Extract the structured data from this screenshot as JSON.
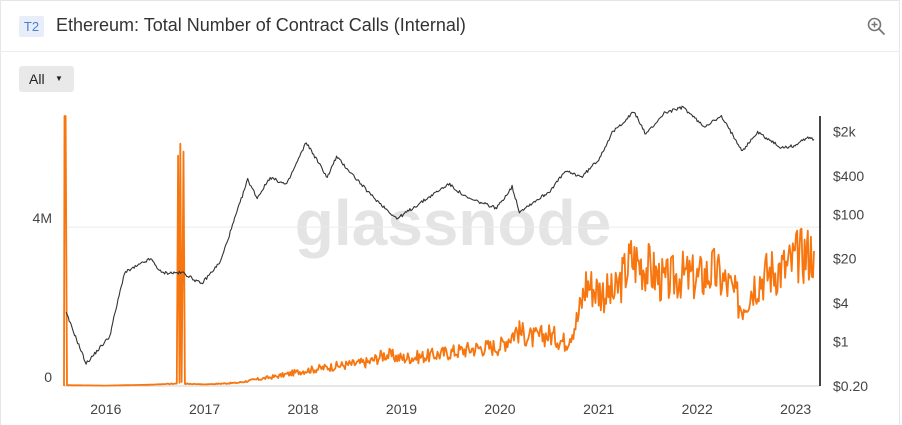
{
  "header": {
    "badge": "T2",
    "title": "Ethereum: Total Number of Contract Calls (Internal)",
    "zoom_icon": "zoom-in-icon"
  },
  "controls": {
    "range_label": "All"
  },
  "watermark": "glassnode",
  "colors": {
    "calls": "#f7760f",
    "price": "#333333",
    "axis": "#444444"
  },
  "chart_data": {
    "type": "line",
    "x_ticks": [
      "2016",
      "2017",
      "2018",
      "2019",
      "2020",
      "2021",
      "2022",
      "2023"
    ],
    "x_range": [
      "2015-07-30",
      "2023-03-10"
    ],
    "y_left_ticks": [
      "0",
      "4M"
    ],
    "y_left_range": [
      0,
      6800000
    ],
    "y_right_ticks": [
      "$0.20",
      "$1",
      "$4",
      "$20",
      "$100",
      "$400",
      "$2k"
    ],
    "y_right_scale": "log",
    "y_right_range": [
      0.2,
      3500
    ],
    "series": [
      {
        "axis": "left",
        "color": "#f7760f",
        "points": [
          [
            "2015-07-30",
            0
          ],
          [
            "2015-08-01",
            6800000
          ],
          [
            "2015-08-05",
            6800000
          ],
          [
            "2015-08-10",
            20000
          ],
          [
            "2016-01-01",
            10000
          ],
          [
            "2016-06-01",
            30000
          ],
          [
            "2016-09-20",
            60000
          ],
          [
            "2016-09-25",
            5800000
          ],
          [
            "2016-09-30",
            80000
          ],
          [
            "2016-10-03",
            6100000
          ],
          [
            "2016-10-08",
            100000
          ],
          [
            "2016-10-15",
            5900000
          ],
          [
            "2016-10-20",
            60000
          ],
          [
            "2017-01-01",
            40000
          ],
          [
            "2017-05-01",
            80000
          ],
          [
            "2017-07-01",
            150000
          ],
          [
            "2017-10-01",
            250000
          ],
          [
            "2018-01-01",
            380000
          ],
          [
            "2018-05-01",
            500000
          ],
          [
            "2018-09-01",
            600000
          ],
          [
            "2018-11-01",
            800000
          ],
          [
            "2019-01-01",
            700000
          ],
          [
            "2019-04-01",
            750000
          ],
          [
            "2019-07-01",
            850000
          ],
          [
            "2019-10-01",
            950000
          ],
          [
            "2020-01-01",
            1000000
          ],
          [
            "2020-03-01",
            1400000
          ],
          [
            "2020-05-01",
            1200000
          ],
          [
            "2020-07-01",
            1300000
          ],
          [
            "2020-09-01",
            1100000
          ],
          [
            "2020-10-15",
            1700000
          ],
          [
            "2020-11-15",
            2600000
          ],
          [
            "2021-01-01",
            2400000
          ],
          [
            "2021-03-01",
            2300000
          ],
          [
            "2021-05-01",
            3200000
          ],
          [
            "2021-07-01",
            3000000
          ],
          [
            "2021-09-01",
            2600000
          ],
          [
            "2021-11-01",
            2800000
          ],
          [
            "2022-01-01",
            2700000
          ],
          [
            "2022-03-01",
            2900000
          ],
          [
            "2022-05-01",
            2500000
          ],
          [
            "2022-06-15",
            2000000
          ],
          [
            "2022-08-01",
            2600000
          ],
          [
            "2022-10-01",
            2900000
          ],
          [
            "2022-12-01",
            3000000
          ],
          [
            "2023-01-15",
            3300000
          ],
          [
            "2023-03-10",
            3400000
          ]
        ]
      },
      {
        "axis": "right",
        "color": "#333333",
        "points": [
          [
            "2015-08-07",
            2.8
          ],
          [
            "2015-10-20",
            0.45
          ],
          [
            "2016-01-15",
            1.2
          ],
          [
            "2016-03-10",
            12
          ],
          [
            "2016-06-15",
            20
          ],
          [
            "2016-07-25",
            12
          ],
          [
            "2016-10-15",
            12
          ],
          [
            "2016-12-20",
            8
          ],
          [
            "2017-03-01",
            18
          ],
          [
            "2017-06-10",
            350
          ],
          [
            "2017-07-15",
            180
          ],
          [
            "2017-09-01",
            380
          ],
          [
            "2017-11-01",
            290
          ],
          [
            "2018-01-13",
            1350
          ],
          [
            "2018-04-01",
            380
          ],
          [
            "2018-05-05",
            800
          ],
          [
            "2018-09-10",
            200
          ],
          [
            "2018-12-15",
            85
          ],
          [
            "2019-06-25",
            300
          ],
          [
            "2019-09-01",
            180
          ],
          [
            "2019-12-20",
            125
          ],
          [
            "2020-02-15",
            270
          ],
          [
            "2020-03-13",
            110
          ],
          [
            "2020-07-01",
            225
          ],
          [
            "2020-08-30",
            470
          ],
          [
            "2020-11-01",
            390
          ],
          [
            "2021-01-01",
            730
          ],
          [
            "2021-02-20",
            1900
          ],
          [
            "2021-05-12",
            4100
          ],
          [
            "2021-06-25",
            1800
          ],
          [
            "2021-09-01",
            3900
          ],
          [
            "2021-11-10",
            4800
          ],
          [
            "2022-01-25",
            2400
          ],
          [
            "2022-04-01",
            3400
          ],
          [
            "2022-06-18",
            1000
          ],
          [
            "2022-08-13",
            1950
          ],
          [
            "2022-11-10",
            1100
          ],
          [
            "2022-12-30",
            1200
          ],
          [
            "2023-02-15",
            1650
          ],
          [
            "2023-03-10",
            1500
          ]
        ]
      }
    ]
  }
}
